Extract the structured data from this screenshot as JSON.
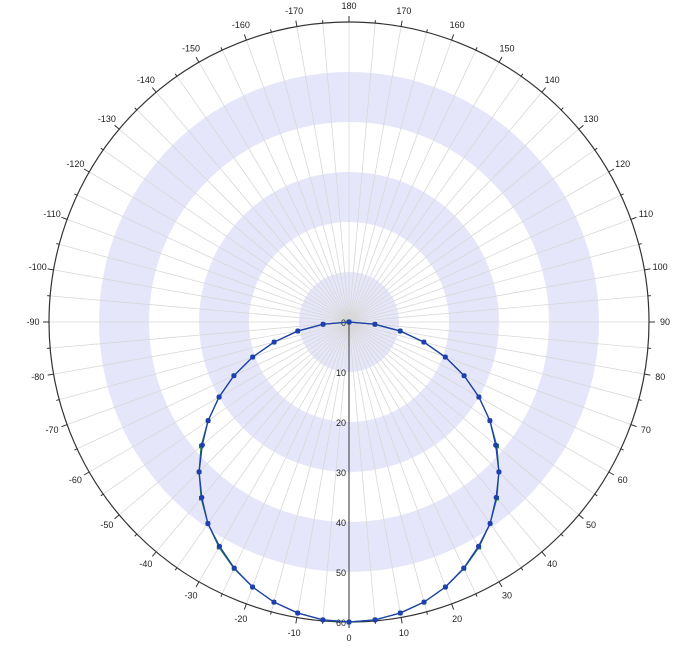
{
  "chart_data": {
    "type": "polar-line",
    "title": "",
    "angle_axis": {
      "zero_direction": "bottom",
      "positive_direction": "counterclockwise",
      "tick_step": 10,
      "tick_labels": [
        "0",
        "10",
        "20",
        "30",
        "40",
        "50",
        "60",
        "70",
        "80",
        "90",
        "100",
        "110",
        "120",
        "130",
        "140",
        "150",
        "160",
        "170",
        "180",
        "-170",
        "-160",
        "-150",
        "-140",
        "-130",
        "-120",
        "-110",
        "-100",
        "-90",
        "-80",
        "-70",
        "-60",
        "-50",
        "-40",
        "-30",
        "-20",
        "-10"
      ]
    },
    "radial_axis": {
      "range": [
        0,
        60
      ],
      "tick_labels": [
        "0",
        "10",
        "20",
        "30",
        "40",
        "50",
        "60"
      ],
      "label_line_angle": 0,
      "band_fill": "#e6e6fa"
    },
    "grid": true,
    "series": [
      {
        "color": "#1f3fb0",
        "marker": "circle",
        "angles": [
          -90,
          -85,
          -80,
          -75,
          -70,
          -65,
          -60,
          -55,
          -50,
          -45,
          -40,
          -35,
          -30,
          -25,
          -20,
          -15,
          -10,
          -5,
          0,
          5,
          10,
          15,
          20,
          25,
          30,
          35,
          40,
          45,
          50,
          55,
          60,
          65,
          70,
          75,
          80,
          85,
          90
        ],
        "values": [
          0,
          5.2,
          10.4,
          15.5,
          20.5,
          25.4,
          30.0,
          34.4,
          38.3,
          42.4,
          45.8,
          49.2,
          51.8,
          54.3,
          56.4,
          58.0,
          59.1,
          59.8,
          60.0,
          59.8,
          59.1,
          58.0,
          56.4,
          54.3,
          51.8,
          49.2,
          45.8,
          42.4,
          38.3,
          34.4,
          30.0,
          25.4,
          20.5,
          15.5,
          10.4,
          5.2,
          0
        ]
      },
      {
        "color": "#1e7a3c",
        "marker": "square",
        "angles": [
          -90,
          -85,
          -80,
          -75,
          -70,
          -65,
          -60,
          -55,
          -50,
          -45,
          -40,
          -35,
          -30,
          -25,
          -20,
          -15,
          -10,
          -5,
          0,
          5,
          10,
          15,
          20,
          25,
          30,
          35,
          40,
          45,
          50,
          55,
          60,
          65,
          70,
          75,
          80,
          85,
          90
        ],
        "values": [
          0,
          5.2,
          10.4,
          15.5,
          20.5,
          25.4,
          30.0,
          34.4,
          38.6,
          42.4,
          46.0,
          49.2,
          52.0,
          54.4,
          56.4,
          58.0,
          59.1,
          59.8,
          60.0,
          59.8,
          59.1,
          58.0,
          56.4,
          54.4,
          52.0,
          49.2,
          46.0,
          42.4,
          38.6,
          34.4,
          30.0,
          25.4,
          20.5,
          15.5,
          10.4,
          5.2,
          0
        ]
      }
    ]
  }
}
